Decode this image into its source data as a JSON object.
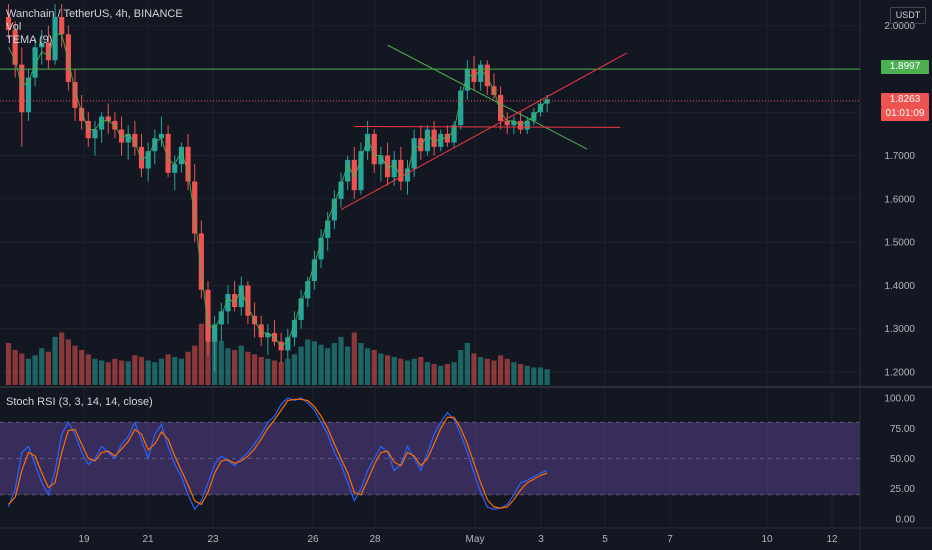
{
  "legend": {
    "symbol": "Wanchain / TetherUS, 4h, BINANCE",
    "vol": "Vol",
    "tema": "TEMA (9)"
  },
  "oscillator_legend": "Stoch RSI (3, 3, 14, 14, close)",
  "currency": "USDT",
  "badges": {
    "resistance_price": "1.8997",
    "last_price": "1.8263",
    "countdown": "01:01:09"
  },
  "colors": {
    "background": "#131722",
    "up": "#26a69a",
    "down": "#ef5350",
    "grid": "#1e222d",
    "resistance_line": "#4caf50",
    "trendline_up": "#f23645",
    "stoch_k": "#2962ff",
    "stoch_d": "#ff6d00",
    "stoch_band": "#7e57c2",
    "tema": "#4caf50"
  },
  "chart_data": [
    {
      "type": "candlestick",
      "title": "Wanchain / TetherUS, 4h, BINANCE",
      "ylabel": "USDT",
      "price_ticks": [
        "2.0000",
        "1.9000",
        "1.8000",
        "1.7000",
        "1.6000",
        "1.5000",
        "1.4000",
        "1.3000",
        "1.2000"
      ],
      "date_ticks": [
        "19",
        "21",
        "23",
        "26",
        "28",
        "May",
        "3",
        "5",
        "7",
        "10",
        "12"
      ],
      "ylim": [
        1.17,
        2.05
      ],
      "resistance_level": 1.8997,
      "last_price": 1.8263,
      "volume_series": "Vol",
      "ohlc": [
        [
          2.02,
          2.05,
          1.97,
          1.99
        ],
        [
          1.99,
          2.01,
          1.88,
          1.91
        ],
        [
          1.91,
          1.95,
          1.72,
          1.8
        ],
        [
          1.8,
          1.9,
          1.78,
          1.88
        ],
        [
          1.88,
          1.97,
          1.86,
          1.95
        ],
        [
          1.95,
          1.99,
          1.91,
          1.96
        ],
        [
          1.96,
          2.0,
          1.9,
          1.92
        ],
        [
          1.92,
          2.05,
          1.91,
          2.02
        ],
        [
          2.02,
          2.05,
          1.95,
          1.98
        ],
        [
          1.98,
          2.0,
          1.85,
          1.87
        ],
        [
          1.87,
          1.9,
          1.78,
          1.81
        ],
        [
          1.81,
          1.84,
          1.76,
          1.78
        ],
        [
          1.78,
          1.8,
          1.72,
          1.74
        ],
        [
          1.74,
          1.78,
          1.7,
          1.76
        ],
        [
          1.76,
          1.8,
          1.73,
          1.79
        ],
        [
          1.79,
          1.82,
          1.75,
          1.78
        ],
        [
          1.78,
          1.8,
          1.74,
          1.76
        ],
        [
          1.76,
          1.79,
          1.7,
          1.73
        ],
        [
          1.73,
          1.77,
          1.69,
          1.75
        ],
        [
          1.75,
          1.78,
          1.7,
          1.72
        ],
        [
          1.72,
          1.75,
          1.65,
          1.67
        ],
        [
          1.67,
          1.73,
          1.64,
          1.71
        ],
        [
          1.71,
          1.76,
          1.68,
          1.74
        ],
        [
          1.74,
          1.79,
          1.72,
          1.75
        ],
        [
          1.75,
          1.77,
          1.65,
          1.66
        ],
        [
          1.66,
          1.7,
          1.62,
          1.68
        ],
        [
          1.68,
          1.73,
          1.66,
          1.72
        ],
        [
          1.72,
          1.75,
          1.62,
          1.64
        ],
        [
          1.64,
          1.68,
          1.5,
          1.52
        ],
        [
          1.52,
          1.55,
          1.37,
          1.39
        ],
        [
          1.39,
          1.41,
          1.24,
          1.27
        ],
        [
          1.27,
          1.33,
          1.2,
          1.31
        ],
        [
          1.31,
          1.36,
          1.27,
          1.34
        ],
        [
          1.34,
          1.4,
          1.31,
          1.38
        ],
        [
          1.38,
          1.41,
          1.34,
          1.35
        ],
        [
          1.35,
          1.42,
          1.33,
          1.4
        ],
        [
          1.4,
          1.41,
          1.31,
          1.33
        ],
        [
          1.33,
          1.36,
          1.28,
          1.31
        ],
        [
          1.31,
          1.33,
          1.26,
          1.28
        ],
        [
          1.28,
          1.31,
          1.24,
          1.29
        ],
        [
          1.29,
          1.32,
          1.26,
          1.27
        ],
        [
          1.27,
          1.29,
          1.22,
          1.25
        ],
        [
          1.25,
          1.3,
          1.23,
          1.28
        ],
        [
          1.28,
          1.34,
          1.26,
          1.32
        ],
        [
          1.32,
          1.39,
          1.3,
          1.37
        ],
        [
          1.37,
          1.42,
          1.35,
          1.41
        ],
        [
          1.41,
          1.48,
          1.39,
          1.46
        ],
        [
          1.46,
          1.53,
          1.44,
          1.51
        ],
        [
          1.51,
          1.57,
          1.48,
          1.55
        ],
        [
          1.55,
          1.62,
          1.53,
          1.6
        ],
        [
          1.6,
          1.66,
          1.58,
          1.64
        ],
        [
          1.64,
          1.7,
          1.62,
          1.69
        ],
        [
          1.69,
          1.72,
          1.6,
          1.62
        ],
        [
          1.62,
          1.73,
          1.61,
          1.71
        ],
        [
          1.71,
          1.78,
          1.69,
          1.75
        ],
        [
          1.75,
          1.76,
          1.66,
          1.68
        ],
        [
          1.68,
          1.72,
          1.64,
          1.7
        ],
        [
          1.7,
          1.73,
          1.63,
          1.65
        ],
        [
          1.65,
          1.71,
          1.63,
          1.69
        ],
        [
          1.69,
          1.72,
          1.62,
          1.64
        ],
        [
          1.64,
          1.69,
          1.61,
          1.67
        ],
        [
          1.67,
          1.76,
          1.65,
          1.74
        ],
        [
          1.74,
          1.77,
          1.69,
          1.71
        ],
        [
          1.71,
          1.77,
          1.7,
          1.76
        ],
        [
          1.76,
          1.78,
          1.7,
          1.72
        ],
        [
          1.72,
          1.76,
          1.71,
          1.75
        ],
        [
          1.75,
          1.77,
          1.72,
          1.73
        ],
        [
          1.73,
          1.78,
          1.72,
          1.77
        ],
        [
          1.77,
          1.86,
          1.76,
          1.85
        ],
        [
          1.85,
          1.92,
          1.83,
          1.9
        ],
        [
          1.9,
          1.93,
          1.85,
          1.87
        ],
        [
          1.87,
          1.92,
          1.85,
          1.91
        ],
        [
          1.91,
          1.92,
          1.84,
          1.86
        ],
        [
          1.86,
          1.89,
          1.83,
          1.84
        ],
        [
          1.84,
          1.86,
          1.76,
          1.78
        ],
        [
          1.78,
          1.8,
          1.75,
          1.77
        ],
        [
          1.77,
          1.79,
          1.75,
          1.78
        ],
        [
          1.78,
          1.8,
          1.75,
          1.76
        ],
        [
          1.76,
          1.79,
          1.75,
          1.78
        ],
        [
          1.78,
          1.81,
          1.77,
          1.8
        ],
        [
          1.8,
          1.83,
          1.79,
          1.82
        ],
        [
          1.82,
          1.84,
          1.8,
          1.83
        ]
      ],
      "tema_values": [
        1.95,
        1.92,
        1.86,
        1.87,
        1.91,
        1.94,
        1.93,
        1.98,
        1.98,
        1.92,
        1.85,
        1.8,
        1.76,
        1.76,
        1.78,
        1.78,
        1.77,
        1.74,
        1.75,
        1.73,
        1.69,
        1.7,
        1.73,
        1.74,
        1.69,
        1.68,
        1.71,
        1.66,
        1.56,
        1.43,
        1.31,
        1.3,
        1.33,
        1.37,
        1.36,
        1.39,
        1.35,
        1.32,
        1.29,
        1.29,
        1.28,
        1.26,
        1.27,
        1.31,
        1.36,
        1.4,
        1.45,
        1.5,
        1.55,
        1.59,
        1.63,
        1.68,
        1.65,
        1.69,
        1.74,
        1.7,
        1.7,
        1.67,
        1.68,
        1.65,
        1.66,
        1.72,
        1.72,
        1.75,
        1.73,
        1.74,
        1.74,
        1.76,
        1.83,
        1.89,
        1.88,
        1.9,
        1.88,
        1.85,
        1.8,
        1.78,
        1.78,
        1.77,
        1.78,
        1.79,
        1.81,
        1.83
      ],
      "volume": [
        48,
        40,
        36,
        30,
        34,
        42,
        38,
        55,
        60,
        52,
        45,
        40,
        35,
        30,
        28,
        26,
        30,
        28,
        27,
        34,
        32,
        28,
        26,
        30,
        35,
        32,
        30,
        38,
        45,
        70,
        80,
        65,
        50,
        42,
        40,
        45,
        38,
        35,
        32,
        30,
        28,
        26,
        30,
        35,
        44,
        52,
        50,
        46,
        42,
        48,
        55,
        44,
        60,
        48,
        42,
        40,
        36,
        34,
        32,
        30,
        28,
        30,
        32,
        26,
        24,
        22,
        24,
        26,
        40,
        48,
        36,
        32,
        30,
        28,
        34,
        30,
        26,
        24,
        22,
        20,
        20,
        18
      ],
      "drawn_lines": [
        {
          "name": "resistance",
          "from": [
            57,
            1.955
          ],
          "to": [
            87,
            1.715
          ]
        },
        {
          "name": "support-trend",
          "from": [
            50,
            1.575
          ],
          "to": [
            93,
            1.937
          ]
        },
        {
          "name": "horizontal-support",
          "from": [
            52,
            1.767
          ],
          "to": [
            92,
            1.765
          ]
        }
      ]
    },
    {
      "type": "line",
      "title": "Stoch RSI (3, 3, 14, 14, close)",
      "ylim": [
        -5,
        105
      ],
      "ticks": [
        "100.00",
        "75.00",
        "50.00",
        "25.00",
        "0.00"
      ],
      "band": [
        20,
        80
      ],
      "series": [
        {
          "name": "K",
          "values": [
            10,
            25,
            55,
            60,
            45,
            30,
            20,
            40,
            70,
            80,
            70,
            55,
            45,
            50,
            60,
            55,
            50,
            62,
            68,
            80,
            65,
            50,
            70,
            78,
            60,
            45,
            35,
            20,
            8,
            15,
            30,
            45,
            52,
            48,
            44,
            50,
            55,
            62,
            70,
            80,
            85,
            95,
            100,
            98,
            100,
            96,
            90,
            80,
            70,
            55,
            45,
            30,
            15,
            25,
            40,
            50,
            60,
            55,
            40,
            45,
            60,
            50,
            40,
            55,
            70,
            80,
            88,
            82,
            70,
            55,
            38,
            22,
            10,
            8,
            9,
            12,
            20,
            30,
            32,
            35,
            38,
            40
          ]
        },
        {
          "name": "D",
          "values": [
            12,
            18,
            40,
            55,
            52,
            38,
            26,
            30,
            55,
            73,
            74,
            62,
            50,
            48,
            55,
            56,
            52,
            58,
            64,
            74,
            70,
            57,
            62,
            72,
            66,
            52,
            40,
            28,
            15,
            12,
            22,
            38,
            48,
            49,
            46,
            48,
            52,
            58,
            66,
            75,
            82,
            90,
            98,
            99,
            99,
            98,
            93,
            85,
            75,
            62,
            50,
            38,
            22,
            20,
            32,
            45,
            55,
            56,
            47,
            44,
            55,
            52,
            44,
            50,
            62,
            75,
            84,
            84,
            75,
            62,
            46,
            30,
            16,
            10,
            9,
            10,
            16,
            24,
            30,
            33,
            36,
            38
          ]
        }
      ]
    }
  ]
}
